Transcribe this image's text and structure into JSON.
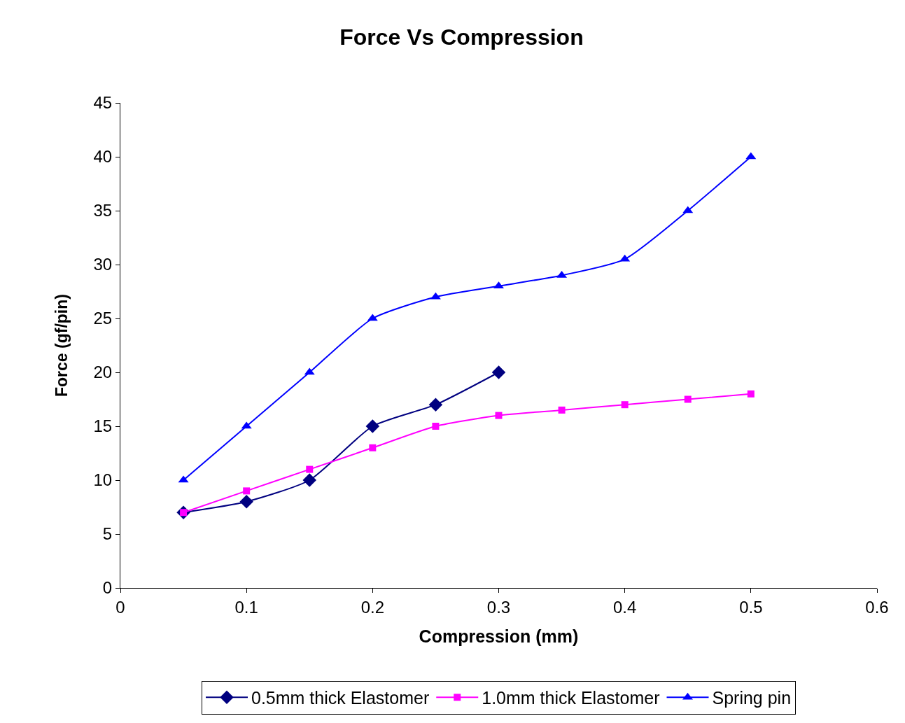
{
  "chart_data": {
    "type": "line",
    "title": "Force Vs Compression",
    "xlabel": "Compression (mm)",
    "ylabel": "Force (gf/pin)",
    "xlim": [
      0,
      0.6
    ],
    "xticks": [
      0,
      0.1,
      0.2,
      0.3,
      0.4,
      0.5,
      0.6
    ],
    "ylim": [
      0,
      45
    ],
    "yticks": [
      0,
      5,
      10,
      15,
      20,
      25,
      30,
      35,
      40,
      45
    ],
    "grid": false,
    "legend": "bottom",
    "line_style": "solid",
    "series": [
      {
        "name": "0.5mm thick Elastomer",
        "color": "#000080",
        "marker": "diamond",
        "x": [
          0.05,
          0.1,
          0.15,
          0.2,
          0.25,
          0.3
        ],
        "values": [
          7,
          8,
          10,
          15,
          17,
          20
        ]
      },
      {
        "name": "1.0mm thick Elastomer",
        "color": "#ff00ff",
        "marker": "square",
        "x": [
          0.05,
          0.1,
          0.15,
          0.2,
          0.25,
          0.3,
          0.35,
          0.4,
          0.45,
          0.5
        ],
        "values": [
          7,
          9,
          11,
          13,
          15,
          16,
          16.5,
          17,
          17.5,
          18
        ]
      },
      {
        "name": "Spring pin",
        "color": "#0000ff",
        "marker": "triangle",
        "x": [
          0.05,
          0.1,
          0.15,
          0.2,
          0.25,
          0.3,
          0.35,
          0.4,
          0.45,
          0.5
        ],
        "values": [
          10,
          15,
          20,
          25,
          27,
          28,
          29,
          30.5,
          35,
          40
        ]
      }
    ]
  }
}
